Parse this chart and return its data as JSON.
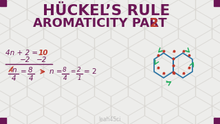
{
  "bg_color": "#ededeb",
  "hex_color": "#d8d6d2",
  "title_line1": "HÜCKEL’S RULE",
  "title_line2": "AROMATICITY PART ",
  "title_part2_num": "2",
  "title_color": "#6b1655",
  "corner_color": "#6b1655",
  "purple": "#6b1655",
  "red": "#c0392b",
  "green": "#27ae60",
  "blue": "#2471a3",
  "watermark": "leah4Sci",
  "watermark_color": "#bbbbbb"
}
